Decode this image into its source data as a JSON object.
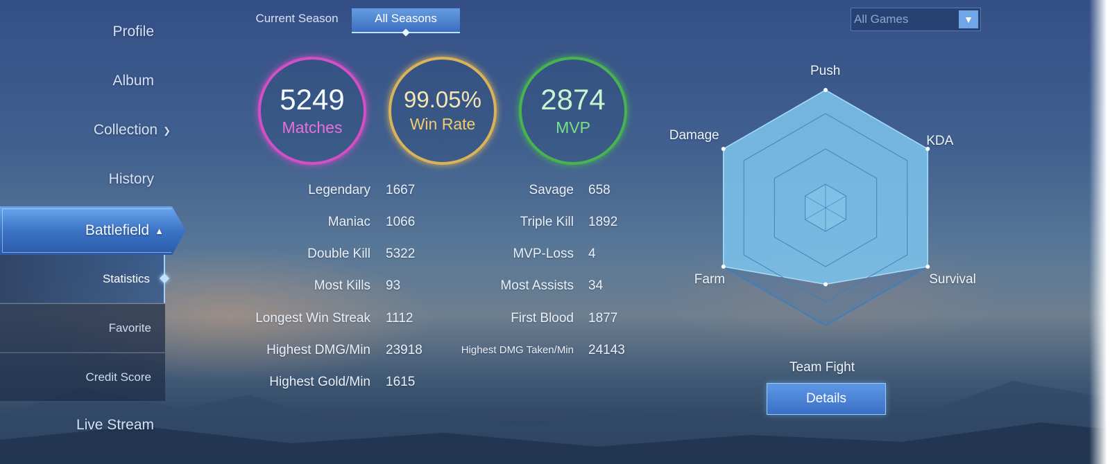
{
  "sidebar": {
    "items": [
      {
        "label": "Profile"
      },
      {
        "label": "Album"
      },
      {
        "label": "Collection",
        "icon": "chevron-down-icon"
      },
      {
        "label": "History"
      },
      {
        "label": "Battlefield",
        "icon": "chevron-up-icon"
      },
      {
        "label": "Live Stream"
      }
    ],
    "subitems": [
      {
        "label": "Statistics"
      },
      {
        "label": "Favorite"
      },
      {
        "label": "Credit Score"
      }
    ]
  },
  "season_tabs": [
    {
      "label": "Current Season"
    },
    {
      "label": "All Seasons"
    }
  ],
  "filter": {
    "value": "All Games"
  },
  "summary": {
    "matches": {
      "value": "5249",
      "label": "Matches",
      "color": "#d24fc6"
    },
    "win_rate": {
      "value": "99.05%",
      "label": "Win Rate",
      "color": "#d9b35a"
    },
    "mvp": {
      "value": "2874",
      "label": "MVP",
      "color": "#49b352"
    }
  },
  "stats": {
    "left": [
      {
        "label": "Legendary",
        "value": "1667"
      },
      {
        "label": "Maniac",
        "value": "1066"
      },
      {
        "label": "Double Kill",
        "value": "5322"
      },
      {
        "label": "Most Kills",
        "value": "93"
      },
      {
        "label": "Longest Win Streak",
        "value": "1112"
      },
      {
        "label": "Highest DMG/Min",
        "value": "23918"
      },
      {
        "label": "Highest Gold/Min",
        "value": "1615"
      }
    ],
    "right": [
      {
        "label": "Savage",
        "value": "658"
      },
      {
        "label": "Triple Kill",
        "value": "1892"
      },
      {
        "label": "MVP-Loss",
        "value": "4"
      },
      {
        "label": "Most Assists",
        "value": "34"
      },
      {
        "label": "First Blood",
        "value": "1877"
      },
      {
        "label": "Highest DMG Taken/Min",
        "value": "24143"
      }
    ]
  },
  "chart_data": {
    "type": "radar",
    "axes": [
      "Push",
      "KDA",
      "Survival",
      "Team Fight",
      "Farm",
      "Damage"
    ],
    "values": [
      1.0,
      1.0,
      1.0,
      0.65,
      1.0,
      1.0
    ],
    "range": [
      0,
      1
    ],
    "fill_color": "#7ec4ec",
    "grid_color": "#3f7fb8"
  },
  "details_button": {
    "label": "Details"
  }
}
